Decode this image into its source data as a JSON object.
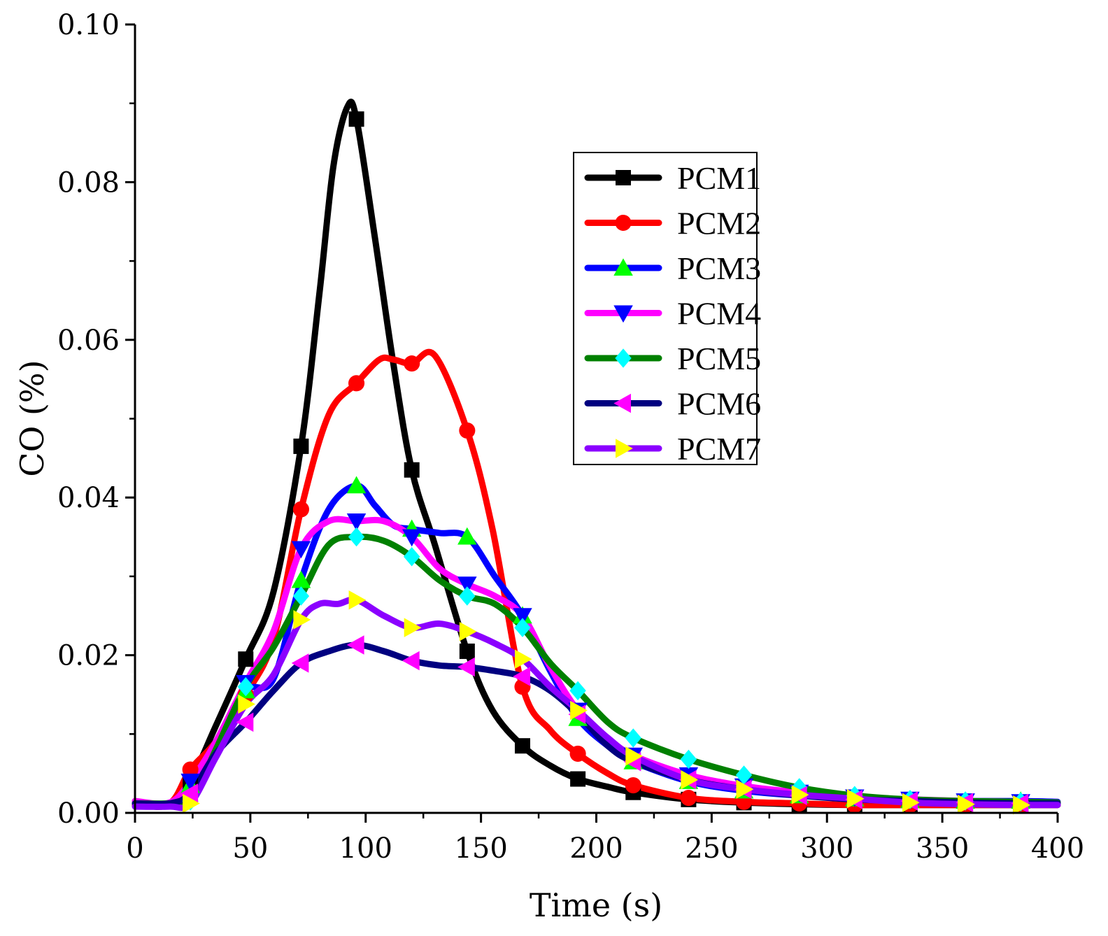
{
  "chart_data": {
    "type": "line",
    "title": "",
    "xlabel": "Time (s)",
    "ylabel": "CO (%)",
    "xlim": [
      0,
      400
    ],
    "ylim": [
      0,
      0.1
    ],
    "xticks": [
      "0",
      "50",
      "100",
      "150",
      "200",
      "250",
      "300",
      "350",
      "400"
    ],
    "yticks": [
      "0.00",
      "0.02",
      "0.04",
      "0.06",
      "0.08",
      "0.10"
    ],
    "grid": false,
    "legend_position": "top-right",
    "series": [
      {
        "name": "PCM1",
        "color": "#000000",
        "marker": "square",
        "marker_color": "#000000",
        "x": [
          0,
          15,
          24,
          35,
          48,
          60,
          72,
          80,
          86,
          92,
          96,
          104,
          112,
          120,
          130,
          144,
          155,
          168,
          180,
          192,
          205,
          216,
          240,
          264,
          288,
          312,
          336,
          360,
          384,
          400
        ],
        "y": [
          0.001,
          0.001,
          0.004,
          0.011,
          0.0195,
          0.028,
          0.0465,
          0.066,
          0.082,
          0.0895,
          0.088,
          0.073,
          0.057,
          0.0435,
          0.034,
          0.0205,
          0.013,
          0.0085,
          0.006,
          0.0043,
          0.0033,
          0.0026,
          0.0017,
          0.0013,
          0.0011,
          0.001,
          0.001,
          0.001,
          0.001,
          0.001
        ],
        "marker_x": [
          24,
          48,
          72,
          96,
          120,
          144,
          168,
          192,
          216,
          240,
          264,
          288,
          312,
          336,
          360,
          384
        ]
      },
      {
        "name": "PCM2",
        "color": "#ff0000",
        "marker": "circle",
        "marker_color": "#ff0000",
        "x": [
          0,
          15,
          24,
          35,
          48,
          60,
          72,
          84,
          96,
          106,
          112,
          120,
          130,
          144,
          155,
          168,
          180,
          192,
          205,
          216,
          240,
          264,
          288,
          312,
          336,
          360,
          384,
          400
        ],
        "y": [
          0.001,
          0.0012,
          0.0055,
          0.009,
          0.015,
          0.022,
          0.0385,
          0.0505,
          0.0545,
          0.0575,
          0.0575,
          0.057,
          0.058,
          0.0485,
          0.036,
          0.016,
          0.0105,
          0.0075,
          0.005,
          0.0035,
          0.0019,
          0.0014,
          0.0012,
          0.001,
          0.001,
          0.001,
          0.001,
          0.001
        ],
        "marker_x": [
          24,
          48,
          72,
          96,
          120,
          144,
          168,
          192,
          216,
          240,
          264,
          288,
          312,
          336,
          360,
          384
        ]
      },
      {
        "name": "PCM3",
        "color": "#0000ff",
        "marker": "triangle-up",
        "marker_color": "#00ff00",
        "x": [
          0,
          15,
          24,
          35,
          48,
          60,
          72,
          84,
          96,
          104,
          112,
          120,
          132,
          144,
          156,
          168,
          180,
          192,
          205,
          216,
          240,
          264,
          288,
          312,
          336,
          360,
          384,
          400
        ],
        "y": [
          0.0012,
          0.0012,
          0.0035,
          0.009,
          0.0155,
          0.017,
          0.0295,
          0.0385,
          0.0415,
          0.039,
          0.0365,
          0.036,
          0.0355,
          0.035,
          0.03,
          0.025,
          0.018,
          0.012,
          0.0085,
          0.0065,
          0.004,
          0.0028,
          0.0022,
          0.0018,
          0.0016,
          0.0015,
          0.0015,
          0.0014
        ],
        "marker_x": [
          24,
          48,
          72,
          96,
          120,
          144,
          168,
          192,
          216,
          240,
          264,
          288,
          312,
          336,
          360,
          384
        ]
      },
      {
        "name": "PCM4",
        "color": "#ff00ff",
        "marker": "triangle-down",
        "marker_color": "#0000ff",
        "x": [
          0,
          15,
          24,
          35,
          48,
          60,
          72,
          84,
          96,
          108,
          120,
          132,
          144,
          156,
          168,
          180,
          192,
          205,
          216,
          240,
          264,
          288,
          312,
          336,
          360,
          384,
          400
        ],
        "y": [
          0.0015,
          0.0013,
          0.004,
          0.009,
          0.0165,
          0.023,
          0.0335,
          0.037,
          0.037,
          0.037,
          0.035,
          0.031,
          0.029,
          0.0275,
          0.025,
          0.0185,
          0.013,
          0.0095,
          0.0073,
          0.0048,
          0.0034,
          0.0026,
          0.002,
          0.0017,
          0.0015,
          0.0014,
          0.0013
        ],
        "marker_x": [
          24,
          48,
          72,
          96,
          120,
          144,
          168,
          192,
          216,
          240,
          264,
          288,
          312,
          336,
          360,
          384
        ]
      },
      {
        "name": "PCM5",
        "color": "#008000",
        "marker": "diamond",
        "marker_color": "#00ffff",
        "x": [
          0,
          15,
          24,
          35,
          48,
          60,
          72,
          84,
          96,
          108,
          120,
          132,
          144,
          156,
          168,
          180,
          192,
          205,
          216,
          240,
          264,
          288,
          312,
          336,
          360,
          384,
          400
        ],
        "y": [
          0.0012,
          0.0012,
          0.0015,
          0.008,
          0.016,
          0.021,
          0.0275,
          0.034,
          0.035,
          0.0345,
          0.0325,
          0.0295,
          0.0275,
          0.0265,
          0.0235,
          0.019,
          0.0155,
          0.0115,
          0.0095,
          0.0068,
          0.0048,
          0.0032,
          0.0022,
          0.0017,
          0.0015,
          0.0014,
          0.0013
        ],
        "marker_x": [
          24,
          48,
          72,
          96,
          120,
          144,
          168,
          192,
          216,
          240,
          264,
          288,
          312,
          336,
          360,
          384
        ]
      },
      {
        "name": "PCM6",
        "color": "#000080",
        "marker": "triangle-left",
        "marker_color": "#ff00ff",
        "x": [
          0,
          15,
          24,
          35,
          48,
          60,
          72,
          84,
          96,
          108,
          120,
          132,
          144,
          156,
          168,
          180,
          192,
          205,
          216,
          240,
          264,
          288,
          312,
          336,
          360,
          384,
          400
        ],
        "y": [
          0.0012,
          0.0012,
          0.0025,
          0.0075,
          0.0115,
          0.0155,
          0.019,
          0.0205,
          0.0213,
          0.0205,
          0.0193,
          0.0187,
          0.0185,
          0.018,
          0.0173,
          0.0155,
          0.0125,
          0.0085,
          0.0065,
          0.0042,
          0.003,
          0.0022,
          0.0017,
          0.0015,
          0.0013,
          0.0012,
          0.0012
        ],
        "marker_x": [
          24,
          48,
          72,
          96,
          120,
          144,
          168,
          192,
          216,
          240,
          264,
          288,
          312,
          336,
          360,
          384
        ]
      },
      {
        "name": "PCM7",
        "color": "#8b00ff",
        "marker": "triangle-right",
        "marker_color": "#ffff00",
        "x": [
          0,
          15,
          24,
          35,
          48,
          60,
          72,
          80,
          88,
          96,
          108,
          120,
          132,
          144,
          156,
          168,
          180,
          192,
          205,
          216,
          240,
          264,
          288,
          312,
          336,
          360,
          384,
          400
        ],
        "y": [
          0.0008,
          0.0008,
          0.0012,
          0.007,
          0.0138,
          0.0175,
          0.0245,
          0.0265,
          0.0265,
          0.027,
          0.025,
          0.0235,
          0.024,
          0.023,
          0.0215,
          0.0195,
          0.016,
          0.013,
          0.0095,
          0.0072,
          0.0042,
          0.003,
          0.0023,
          0.0018,
          0.0013,
          0.0011,
          0.001,
          0.001
        ],
        "marker_x": [
          24,
          48,
          72,
          96,
          120,
          144,
          168,
          192,
          216,
          240,
          264,
          288,
          312,
          336,
          360,
          384
        ]
      }
    ]
  }
}
